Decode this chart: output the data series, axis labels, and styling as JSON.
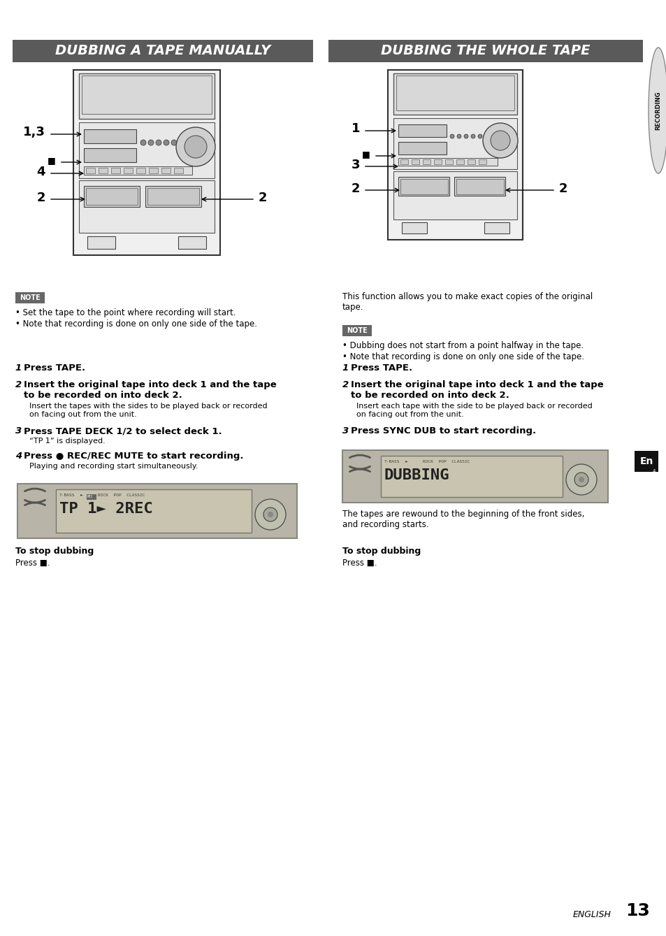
{
  "bg_color": "#ffffff",
  "title_left": "DUBBING A TAPE MANUALLY",
  "title_right": "DUBBING THE WHOLE TAPE",
  "title_bg": "#5a5a5a",
  "title_text_color": "#ffffff",
  "title_fontsize": 14,
  "note_bg": "#666666",
  "note_text_color": "#ffffff",
  "en_bg": "#111111",
  "en_text_color": "#ffffff",
  "recording_text_color": "#000000",
  "body_fontsize": 8.5,
  "step_bold_fontsize": 9.5,
  "footer_text": "ENGLISH 13",
  "left_note_bullets": [
    "Set the tape to the point where recording will start.",
    "Note that recording is done on only one side of the tape."
  ],
  "right_intro": "This function allows you to make exact copies of the original\ntape.",
  "right_note_bullets": [
    "Dubbing does not start from a point halfway in the tape.",
    "Note that recording is done on only one side of the tape."
  ],
  "left_steps": [
    {
      "num": "1",
      "bold": "Press TAPE.",
      "normal": ""
    },
    {
      "num": "2",
      "bold": "Insert the original tape into deck 1 and the tape\nto be recorded on into deck 2.",
      "normal": "Insert the tapes with the sides to be played back or recorded\non facing out from the unit."
    },
    {
      "num": "3",
      "bold": "Press TAPE DECK 1/2 to select deck 1.",
      "normal": "“TP 1” is displayed."
    },
    {
      "num": "4",
      "bold": "Press ● REC/REC MUTE to start recording.",
      "normal": "Playing and recording start simultaneously."
    }
  ],
  "right_steps": [
    {
      "num": "1",
      "bold": "Press TAPE.",
      "normal": ""
    },
    {
      "num": "2",
      "bold": "Insert the original tape into deck 1 and the tape\nto be recorded on into deck 2.",
      "normal": "Insert each tape with the side to be played back or recorded\non facing out from the unit."
    },
    {
      "num": "3",
      "bold": "Press SYNC DUB to start recording.",
      "normal": ""
    }
  ],
  "left_stop_bold": "To stop dubbing",
  "left_stop_normal": "Press ■.",
  "right_stop_bold": "To stop dubbing",
  "right_stop_normal": "Press ■.",
  "right_after_step3": "The tapes are rewound to the beginning of the front sides,\nand recording starts."
}
